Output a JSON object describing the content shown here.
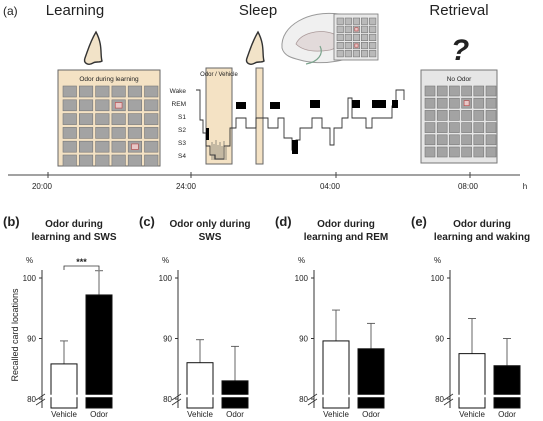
{
  "panel_a": {
    "label": "(a)",
    "phases": [
      "Learning",
      "Sleep",
      "Retrieval"
    ],
    "card_learning": "Odor during learning",
    "card_sleep": "Odor / Vehicle",
    "card_retrieval": "No Odor",
    "question_mark": "?",
    "stages": [
      "Wake",
      "REM",
      "S1",
      "S2",
      "S3",
      "S4"
    ],
    "time_ticks": [
      "20:00",
      "24:00",
      "04:00",
      "08:00"
    ],
    "time_unit": "h"
  },
  "y_axis_label": "Recalled card locations",
  "colors": {
    "vehicle": "#ffffff",
    "odor": "#000000",
    "card": "#f4e2c4",
    "card_gray": "#e6e6e6",
    "cell": "#a3a3a3"
  },
  "chart_data": [
    {
      "type": "bar",
      "label": "(b)",
      "title": "Odor during learning and SWS",
      "ylabel": "%",
      "categories": [
        "Vehicle",
        "Odor"
      ],
      "values": [
        85.8,
        97.2
      ],
      "errors": [
        3.8,
        4.0
      ],
      "ylim": [
        80,
        100
      ],
      "yticks": [
        "80",
        "90",
        "100"
      ],
      "significance": "***"
    },
    {
      "type": "bar",
      "label": "(c)",
      "title": "Odor only during SWS",
      "ylabel": "%",
      "categories": [
        "Vehicle",
        "Odor"
      ],
      "values": [
        86.0,
        83.0
      ],
      "errors": [
        3.8,
        5.7
      ],
      "ylim": [
        80,
        100
      ],
      "yticks": [
        "80",
        "90",
        "100"
      ]
    },
    {
      "type": "bar",
      "label": "(d)",
      "title": "Odor during learning and REM",
      "ylabel": "%",
      "categories": [
        "Vehicle",
        "Odor"
      ],
      "values": [
        89.6,
        88.3
      ],
      "errors": [
        5.1,
        4.2
      ],
      "ylim": [
        80,
        100
      ],
      "yticks": [
        "80",
        "90",
        "100"
      ]
    },
    {
      "type": "bar",
      "label": "(e)",
      "title": "Odor during learning and waking",
      "ylabel": "%",
      "categories": [
        "Vehicle",
        "Odor"
      ],
      "values": [
        87.5,
        85.5
      ],
      "errors": [
        5.8,
        4.5
      ],
      "ylim": [
        80,
        100
      ],
      "yticks": [
        "80",
        "90",
        "100"
      ]
    }
  ]
}
